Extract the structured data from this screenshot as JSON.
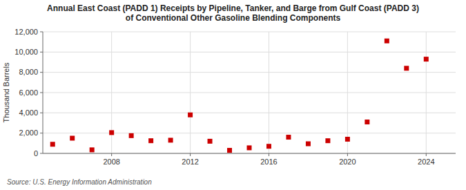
{
  "chart_data": {
    "type": "scatter",
    "title": "Annual East Coast (PADD 1) Receipts by Pipeline, Tanker, and Barge from Gulf Coast (PADD 3)\nof Conventional Other Gasoline Blending Components",
    "y_label": "Thousand Barrels",
    "source": "Source: U.S. Energy Information Administration",
    "x": [
      2005,
      2006,
      2007,
      2008,
      2009,
      2010,
      2011,
      2012,
      2013,
      2014,
      2015,
      2016,
      2017,
      2018,
      2019,
      2020,
      2021,
      2022,
      2023,
      2024
    ],
    "values": [
      900,
      1500,
      350,
      2050,
      1750,
      1250,
      1300,
      3800,
      1200,
      300,
      550,
      700,
      1600,
      950,
      1250,
      1400,
      3100,
      11100,
      8400,
      9300
    ],
    "color": "#cc0000",
    "marker": "square",
    "xlim": [
      2004.5,
      2025.5
    ],
    "xticks": [
      2008,
      2012,
      2016,
      2020,
      2024
    ],
    "ylim": [
      0,
      12000
    ],
    "yticks": [
      0,
      {
        "value": 2000,
        "label": "2,000"
      },
      {
        "value": 4000,
        "label": "4,000"
      },
      {
        "value": 6000,
        "label": "6,000"
      },
      {
        "value": 8000,
        "label": "8,000"
      },
      {
        "value": 10000,
        "label": "10,000"
      },
      {
        "value": 12000,
        "label": "12,000"
      }
    ],
    "grid": true
  }
}
